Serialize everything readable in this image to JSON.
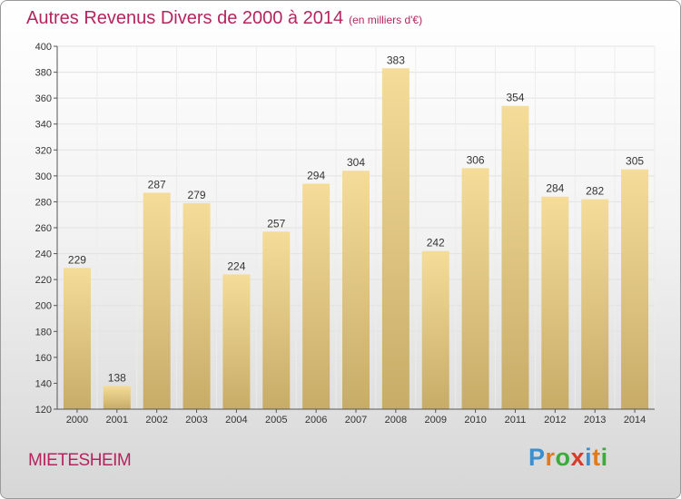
{
  "header": {
    "title": "Autres Revenus Divers de 2000 à 2014",
    "subtitle": "(en milliers d'€)"
  },
  "footer": {
    "location": "MIETESHEIM",
    "brand": {
      "letters": [
        "P",
        "r",
        "o",
        "x",
        "i",
        "t",
        "i"
      ],
      "colors": [
        "#3a8fd0",
        "#e07a1f",
        "#3bab3b",
        "#d63b2c",
        "#3a8fd0",
        "#e07a1f",
        "#3bab3b"
      ]
    }
  },
  "chart_data": {
    "type": "bar",
    "categories": [
      "2000",
      "2001",
      "2002",
      "2003",
      "2004",
      "2005",
      "2006",
      "2007",
      "2008",
      "2009",
      "2010",
      "2011",
      "2012",
      "2013",
      "2014"
    ],
    "values": [
      229,
      138,
      287,
      279,
      224,
      257,
      294,
      304,
      383,
      242,
      306,
      354,
      284,
      282,
      305
    ],
    "ylim": [
      120,
      400
    ],
    "yticks": [
      120,
      140,
      160,
      180,
      200,
      220,
      240,
      260,
      280,
      300,
      320,
      340,
      360,
      380,
      400
    ],
    "grid": true,
    "bar_color_top": "#f5dc99",
    "bar_color_bottom": "#c7ac68"
  }
}
